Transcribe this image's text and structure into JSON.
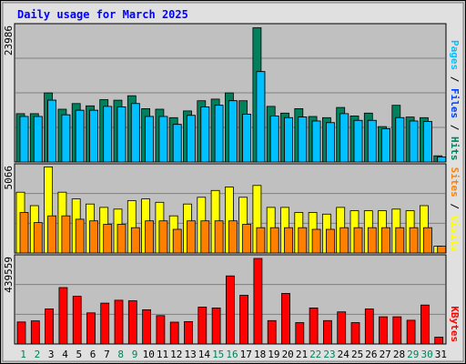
{
  "chart_data": {
    "type": "bar",
    "title": "Daily usage for March 2025",
    "days": [
      "1",
      "2",
      "3",
      "4",
      "5",
      "6",
      "7",
      "8",
      "9",
      "10",
      "11",
      "12",
      "13",
      "14",
      "15",
      "16",
      "17",
      "18",
      "19",
      "20",
      "21",
      "22",
      "23",
      "24",
      "25",
      "26",
      "27",
      "28",
      "29",
      "30",
      "31"
    ],
    "weekend_days": [
      "1",
      "2",
      "8",
      "9",
      "15",
      "16",
      "22",
      "23",
      "29",
      "30"
    ],
    "colors": {
      "background": "#c0c0c0",
      "hits": "#00805c",
      "files": "#0040ff",
      "pages": "#00c0ff",
      "visits": "#ffff00",
      "sites": "#ff8000",
      "kbytes": "#ff0000",
      "weekday_label": "#000000",
      "weekend_label": "#00805c",
      "title": "#0000ff"
    },
    "panels": [
      {
        "name": "hits-files-pages",
        "ymax_label": "23986",
        "ymax": 23986,
        "legend": [
          {
            "text": "Pages",
            "color": "#00c0ff"
          },
          {
            "text": " / ",
            "color": "#000000"
          },
          {
            "text": "Files",
            "color": "#0040ff"
          },
          {
            "text": " / ",
            "color": "#000000"
          },
          {
            "text": "Hits",
            "color": "#00805c"
          }
        ],
        "series": [
          {
            "name": "Hits",
            "color": "#00805c",
            "values": [
              8600,
              8600,
              12300,
              9400,
              10400,
              10000,
              11100,
              11000,
              11800,
              9500,
              9400,
              7900,
              9100,
              10900,
              11200,
              12300,
              10900,
              23900,
              9900,
              8700,
              9500,
              8100,
              7900,
              9700,
              8200,
              8700,
              6300,
              10100,
              8000,
              7900,
              1100
            ]
          },
          {
            "name": "Files",
            "color": "#0040ff",
            "values": [
              8100,
              8100,
              11000,
              8400,
              9200,
              9200,
              9900,
              9800,
              10400,
              8100,
              8100,
              6700,
              8300,
              9800,
              10100,
              10900,
              8500,
              16100,
              8200,
              7900,
              8000,
              7300,
              7000,
              8600,
              7400,
              7400,
              5900,
              7900,
              7300,
              7200,
              900
            ]
          },
          {
            "name": "Pages",
            "color": "#00c0ff",
            "values": [
              8100,
              8100,
              11000,
              8400,
              9200,
              9200,
              9900,
              9800,
              10400,
              8100,
              8100,
              6700,
              8300,
              9800,
              10100,
              10900,
              8500,
              16100,
              8200,
              7900,
              8000,
              7300,
              7000,
              8600,
              7400,
              7400,
              5900,
              7900,
              7300,
              7200,
              900
            ]
          }
        ]
      },
      {
        "name": "visits-sites",
        "ymax_label": "5066",
        "ymax": 5066,
        "legend": [
          {
            "text": "Sites",
            "color": "#ff8000"
          },
          {
            "text": " / ",
            "color": "#000000"
          },
          {
            "text": "Visits",
            "color": "#ffff00"
          }
        ],
        "series": [
          {
            "name": "Visits",
            "color": "#ffff00",
            "values": [
              3600,
              2800,
              5100,
              3600,
              3200,
              2900,
              2700,
              2600,
              3100,
              3200,
              3000,
              2200,
              2900,
              3300,
              3700,
              3900,
              3300,
              4000,
              2700,
              2700,
              2400,
              2400,
              2300,
              2700,
              2500,
              2500,
              2500,
              2600,
              2500,
              2800,
              400
            ]
          },
          {
            "name": "Sites",
            "color": "#ff8000",
            "values": [
              2400,
              1800,
              2200,
              2200,
              2000,
              1900,
              1700,
              1700,
              1500,
              1900,
              1900,
              1400,
              1900,
              1900,
              1900,
              1900,
              1700,
              1500,
              1500,
              1500,
              1500,
              1400,
              1400,
              1500,
              1500,
              1500,
              1500,
              1500,
              1500,
              1500,
              400
            ]
          }
        ]
      },
      {
        "name": "kbytes",
        "ymax_label": "439559",
        "ymax": 439559,
        "legend": [
          {
            "text": "KBytes",
            "color": "#ff0000"
          }
        ],
        "series": [
          {
            "name": "KBytes",
            "color": "#ff0000",
            "values": [
              113000,
              119000,
              180000,
              290000,
              245000,
              160000,
              210000,
              225000,
              222000,
              176000,
              146000,
              112000,
              115000,
              190000,
              185000,
              350000,
              250000,
              439559,
              120000,
              260000,
              110000,
              185000,
              120000,
              165000,
              110000,
              180000,
              140000,
              140000,
              122000,
              200000,
              35000
            ]
          }
        ]
      }
    ]
  }
}
